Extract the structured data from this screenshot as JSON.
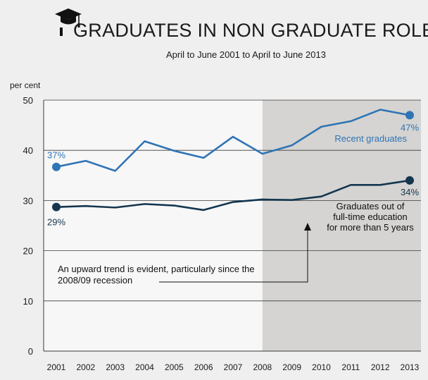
{
  "chart_data": {
    "type": "line",
    "title": "GRADUATES IN NON GRADUATE ROLES",
    "subtitle": "April to June 2001 to April to June 2013",
    "ylabel": "per cent",
    "xlabel": "",
    "ylim": [
      0,
      50
    ],
    "yticks": [
      "0",
      "10",
      "20",
      "30",
      "40",
      "50"
    ],
    "x": [
      "2001",
      "2002",
      "2003",
      "2004",
      "2005",
      "2006",
      "2007",
      "2008",
      "2009",
      "2010",
      "2011",
      "2012",
      "2013"
    ],
    "series": [
      {
        "name": "Recent graduates",
        "color": "#2f74b5",
        "values": [
          36.7,
          37.9,
          35.9,
          41.8,
          39.9,
          38.5,
          42.7,
          39.3,
          41.0,
          44.7,
          45.8,
          48.1,
          47.0
        ],
        "start_label": "37%",
        "end_label": "47%"
      },
      {
        "name": "Graduates out of full-time education for more than 5 years",
        "name_lines": [
          "Graduates out of",
          "full-time education",
          "for more than 5 years"
        ],
        "color": "#14364f",
        "values": [
          28.7,
          28.9,
          28.6,
          29.3,
          29.0,
          28.1,
          29.7,
          30.2,
          30.1,
          30.8,
          33.1,
          33.1,
          34.0
        ],
        "start_label": "29%",
        "end_label": "34%"
      }
    ],
    "shaded_region": {
      "from": "2008",
      "to": "2013"
    },
    "annotation_lines": [
      "An upward trend is evident, particularly since the",
      "2008/09 recession"
    ],
    "grid": true,
    "colors": {
      "background": "#efefef",
      "plot_background": "#f7f7f7",
      "shade": "#d5d4d2",
      "axis": "#3a3a3a"
    }
  },
  "icons": {
    "title_icon": "graduation-cap-icon"
  }
}
